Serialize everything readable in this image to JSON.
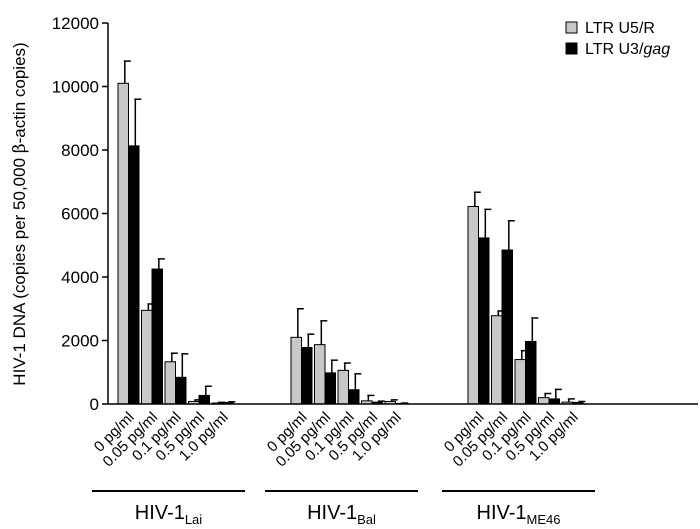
{
  "chart_data": {
    "type": "bar",
    "title": "",
    "ylabel_prefix": "HIV-1 DNA (copies per 50,000 ",
    "ylabel_beta": "β",
    "ylabel_suffix": "-actin copies)",
    "ylim": [
      0,
      12000
    ],
    "yticks": [
      "0",
      "2000",
      "4000",
      "6000",
      "8000",
      "10000",
      "12000"
    ],
    "ytick_values": [
      0,
      2000,
      4000,
      6000,
      8000,
      10000,
      12000
    ],
    "grid": false,
    "legend_position": "top-right",
    "series": [
      {
        "name": "LTR U5/R",
        "name_parts": {
          "plain": "LTR U5/R",
          "italic": ""
        },
        "color": "#c8c8c8",
        "values": [
          10100,
          2950,
          1330,
          80,
          30,
          2100,
          1870,
          1060,
          100,
          80,
          6220,
          2780,
          1400,
          200,
          60
        ],
        "errors": [
          700,
          200,
          270,
          50,
          20,
          900,
          750,
          230,
          170,
          50,
          450,
          150,
          280,
          130,
          100
        ]
      },
      {
        "name": "LTR U3/gag",
        "name_parts": {
          "plain": "LTR U3/",
          "italic": "gag"
        },
        "color": "#000000",
        "values": [
          8130,
          4250,
          840,
          270,
          50,
          1780,
          980,
          450,
          60,
          20,
          5230,
          4850,
          1970,
          160,
          50
        ],
        "errors": [
          1470,
          320,
          740,
          290,
          20,
          420,
          400,
          500,
          30,
          10,
          900,
          920,
          740,
          300,
          30
        ]
      }
    ],
    "groups": [
      {
        "label_main": "HIV-1",
        "label_sub": "Lai",
        "categories": [
          "0 pg/ml",
          "0.05 pg/ml",
          "0.1 pg/ml",
          "0.5 pg/ml",
          "1.0 pg/ml"
        ]
      },
      {
        "label_main": "HIV-1",
        "label_sub": "Bal",
        "categories": [
          "0 pg/ml",
          "0.05 pg/ml",
          "0.1 pg/ml",
          "0.5 pg/ml",
          "1.0 pg/ml"
        ]
      },
      {
        "label_main": "HIV-1",
        "label_sub": "ME46",
        "categories": [
          "0 pg/ml",
          "0.05 pg/ml",
          "0.1 pg/ml",
          "0.5 pg/ml",
          "1.0 pg/ml"
        ]
      }
    ]
  }
}
